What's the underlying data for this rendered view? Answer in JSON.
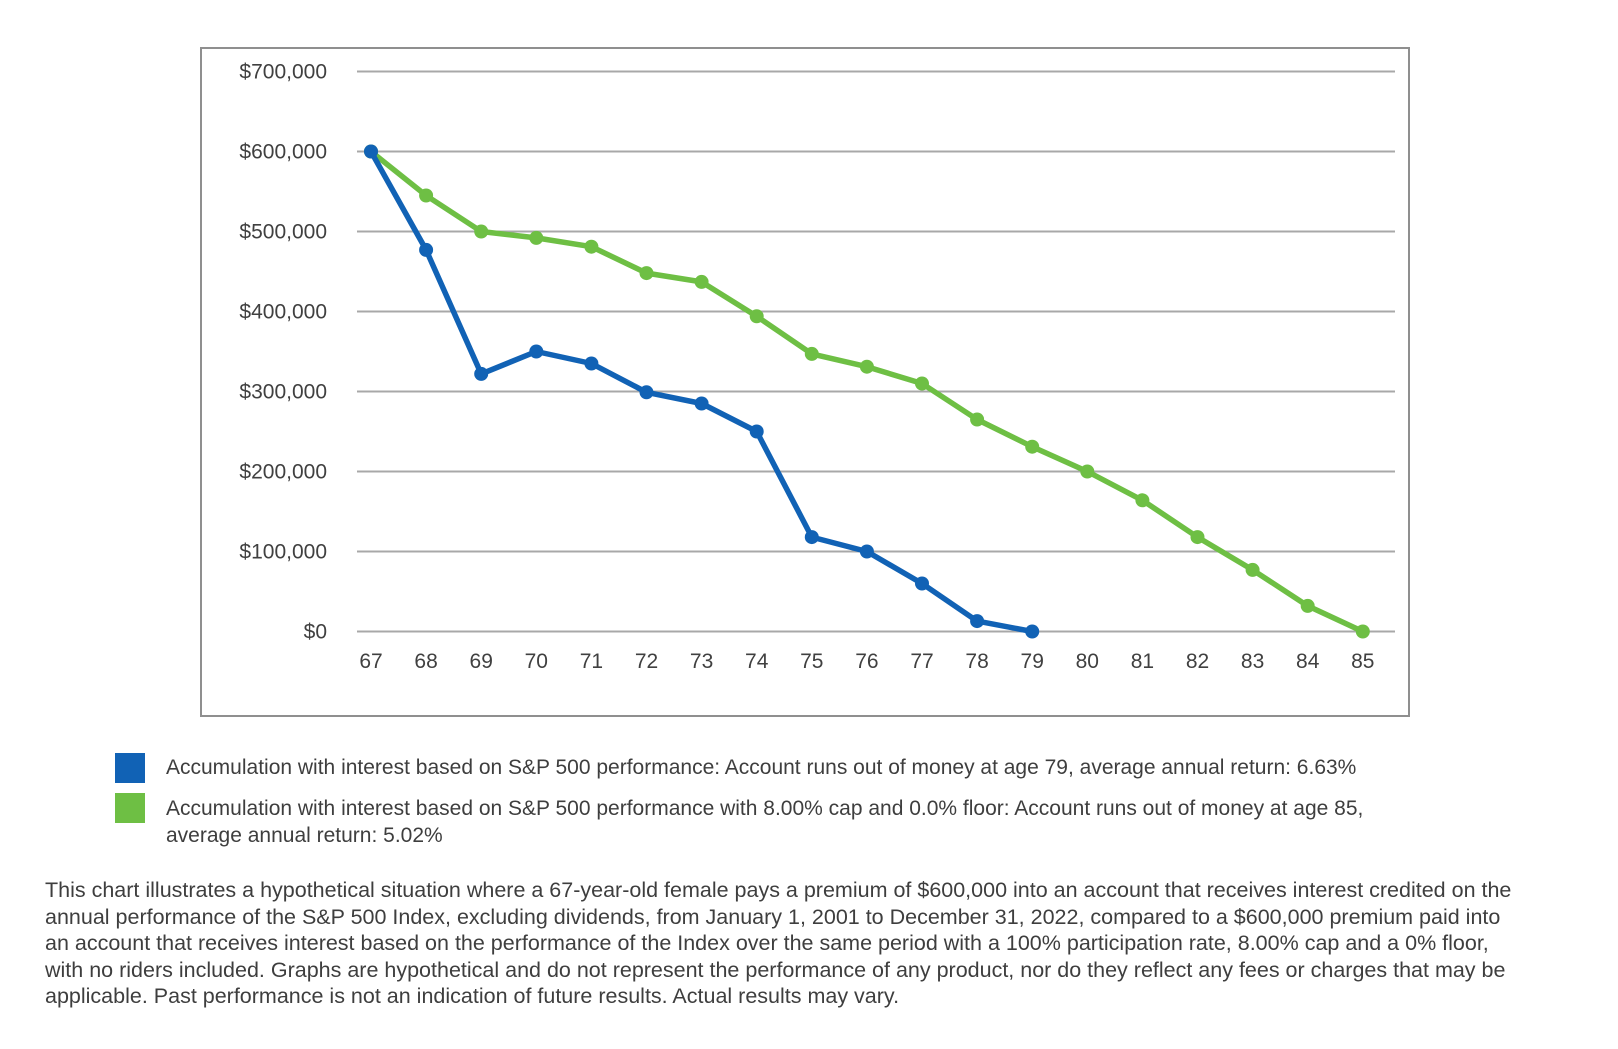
{
  "page": {
    "background": "#ffffff"
  },
  "chart_data": {
    "type": "line",
    "title": "",
    "x": [
      67,
      68,
      69,
      70,
      71,
      72,
      73,
      74,
      75,
      76,
      77,
      78,
      79,
      80,
      81,
      82,
      83,
      84,
      85
    ],
    "xlim": [
      67,
      85
    ],
    "ylim": [
      0,
      700000
    ],
    "grid": "horizontal",
    "gridline_color": "#a8a8a8",
    "border_color": "#8f8f8f",
    "legend_position": "bottom-left",
    "y_ticks": [
      {
        "value": 0,
        "label": "$0"
      },
      {
        "value": 100000,
        "label": "$100,000"
      },
      {
        "value": 200000,
        "label": "$200,000"
      },
      {
        "value": 300000,
        "label": "$300,000"
      },
      {
        "value": 400000,
        "label": "$400,000"
      },
      {
        "value": 500000,
        "label": "$500,000"
      },
      {
        "value": 600000,
        "label": "$600,000"
      },
      {
        "value": 700000,
        "label": "$700,000"
      }
    ],
    "series": [
      {
        "name": "Accumulation with interest based on S&P 500 performance: Account runs out of money at age 79, average annual return: 6.63%",
        "color": "#1162b5",
        "marker": "circle",
        "x": [
          67,
          68,
          69,
          70,
          71,
          72,
          73,
          74,
          75,
          76,
          77,
          78,
          79
        ],
        "values": [
          600000,
          477000,
          322000,
          350000,
          335000,
          299000,
          285000,
          250000,
          118000,
          100000,
          60000,
          13000,
          0
        ]
      },
      {
        "name": "Accumulation with interest based on S&P 500 performance with 8.00% cap and 0.0% floor: Account runs out of money at age 85, average annual return: 5.02%",
        "color": "#6ebf44",
        "marker": "circle",
        "x": [
          67,
          68,
          69,
          70,
          71,
          72,
          73,
          74,
          75,
          76,
          77,
          78,
          79,
          80,
          81,
          82,
          83,
          84,
          85
        ],
        "values": [
          600000,
          545000,
          500000,
          492000,
          481000,
          448000,
          437000,
          394000,
          347000,
          331000,
          310000,
          265000,
          231000,
          200000,
          164000,
          118000,
          77000,
          32000,
          0
        ]
      }
    ]
  },
  "legend": {
    "items": [
      {
        "series_index": 0,
        "lines": [
          "Accumulation with interest based on S&P 500 performance: Account runs out of money at age 79, average annual return: 6.63%"
        ]
      },
      {
        "series_index": 1,
        "lines": [
          "Accumulation with interest based on S&P 500 performance with 8.00% cap and 0.0% floor: Account runs out of money at age 85,",
          "average annual return: 5.02%"
        ]
      }
    ]
  },
  "footnote": {
    "lines": [
      "This chart illustrates a hypothetical situation where a 67-year-old female pays a premium of $600,000 into an account that receives interest credited on the",
      "annual performance of the S&P 500 Index, excluding dividends, from January 1, 2001 to December 31, 2022, compared to a $600,000 premium paid into",
      "an account that receives interest based on the performance of the Index over the same period with a 100% participation rate, 8.00% cap and a 0% floor,",
      "with no riders included. Graphs are hypothetical and do not represent the performance of any product, nor do they reflect any fees or charges that may be",
      "applicable. Past performance is not an indication of future results. Actual results may vary."
    ]
  }
}
